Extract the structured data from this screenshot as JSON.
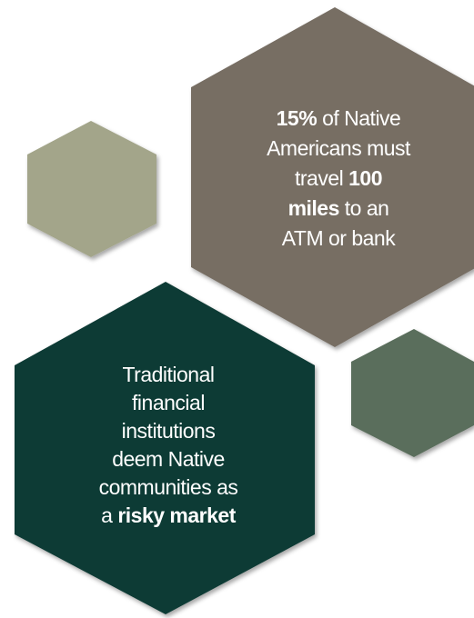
{
  "callouts": [
    {
      "lines": [
        [
          {
            "text": "15%",
            "bold": true
          },
          {
            "text": " of Native"
          }
        ],
        [
          {
            "text": "Americans must"
          }
        ],
        [
          {
            "text": "travel "
          },
          {
            "text": "100",
            "bold": true
          }
        ],
        [
          {
            "text": "miles",
            "bold": true
          },
          {
            "text": " to an"
          }
        ],
        [
          {
            "text": "ATM or bank"
          }
        ]
      ]
    },
    {
      "lines": [
        [
          {
            "text": "Traditional"
          }
        ],
        [
          {
            "text": "financial"
          }
        ],
        [
          {
            "text": "institutions"
          }
        ],
        [
          {
            "text": "deem Native"
          }
        ],
        [
          {
            "text": "communities as"
          }
        ],
        [
          {
            "text": "a "
          },
          {
            "text": "risky market",
            "bold": true
          }
        ]
      ]
    }
  ]
}
